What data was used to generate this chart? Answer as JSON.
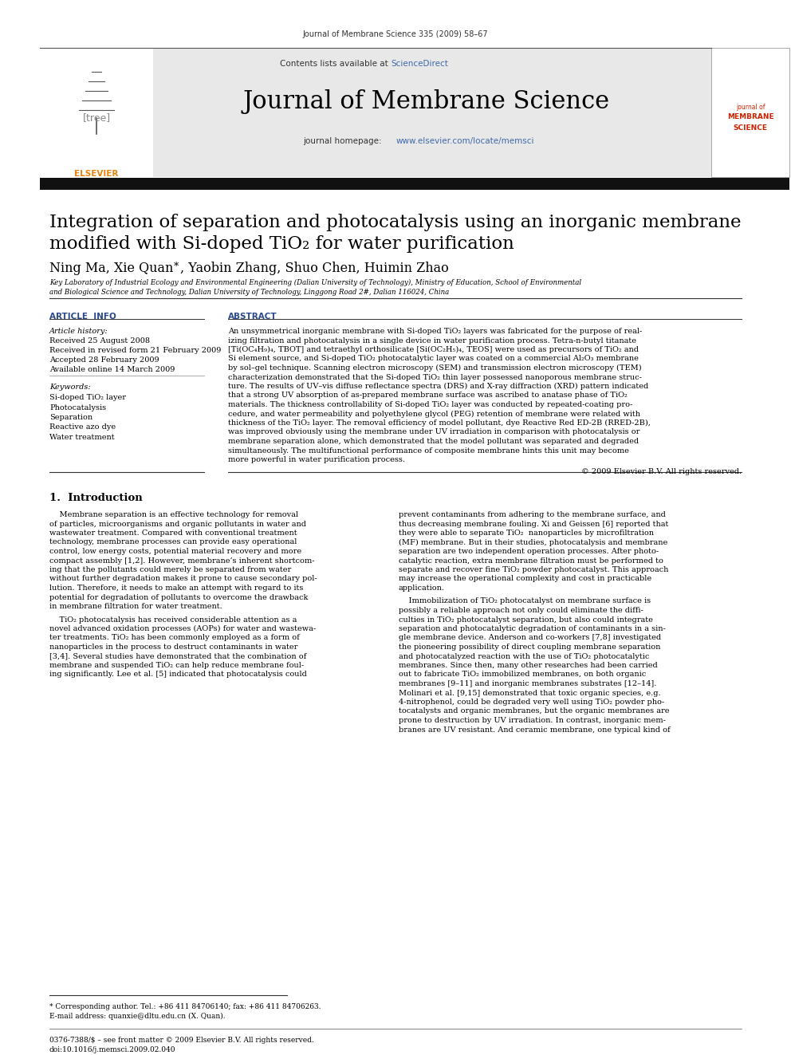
{
  "journal_ref": "Journal of Membrane Science 335 (2009) 58–67",
  "sciencedirect_color": "#4169AA",
  "journal_title": "Journal of Membrane Science",
  "homepage_link_color": "#4169AA",
  "header_bg": "#E8E8E8",
  "paper_title_line1": "Integration of separation and photocatalysis using an inorganic membrane",
  "paper_title_line2": "modified with Si-doped TiO₂ for water purification",
  "affiliation_line1": "Key Laboratory of Industrial Ecology and Environmental Engineering (Dalian University of Technology), Ministry of Education, School of Environmental",
  "affiliation_line2": "and Biological Science and Technology, Dalian University of Technology, Linggong Road 2#, Dalian 116024, China",
  "article_info_header": "ARTICLE  INFO",
  "abstract_header": "ABSTRACT",
  "article_history_label": "Article history:",
  "received": "Received 25 August 2008",
  "received_revised": "Received in revised form 21 February 2009",
  "accepted": "Accepted 28 February 2009",
  "available_online": "Available online 14 March 2009",
  "keywords_label": "Keywords:",
  "keywords": [
    "Si-doped TiO₂ layer",
    "Photocatalysis",
    "Separation",
    "Reactive azo dye",
    "Water treatment"
  ],
  "copyright": "© 2009 Elsevier B.V. All rights reserved.",
  "intro_heading": "1.  Introduction",
  "footnote_star": "* Corresponding author. Tel.: +86 411 84706140; fax: +86 411 84706263.",
  "footnote_email": "E-mail address: quanxie@dltu.edu.cn (X. Quan).",
  "footnote_issn": "0376-7388/$ – see front matter © 2009 Elsevier B.V. All rights reserved.",
  "footnote_doi": "doi:10.1016/j.memsci.2009.02.040",
  "bg_color": "#FFFFFF",
  "text_color": "#000000",
  "section_header_color": "#2B4A8C",
  "abstract_lines": [
    "An unsymmetrical inorganic membrane with Si-doped TiO₂ layers was fabricated for the purpose of real-",
    "izing filtration and photocatalysis in a single device in water purification process. Tetra-n-butyl titanate",
    "[Ti(OC₄H₉)₄, TBOT] and tetraethyl orthosilicate [Si(OC₂H₅)₄, TEOS] were used as precursors of TiO₂ and",
    "Si element source, and Si-doped TiO₂ photocatalytic layer was coated on a commercial Al₂O₃ membrane",
    "by sol–gel technique. Scanning electron microscopy (SEM) and transmission electron microscopy (TEM)",
    "characterization demonstrated that the Si-doped TiO₂ thin layer possessed nanoporous membrane struc-",
    "ture. The results of UV–vis diffuse reflectance spectra (DRS) and X-ray diffraction (XRD) pattern indicated",
    "that a strong UV absorption of as-prepared membrane surface was ascribed to anatase phase of TiO₂",
    "materials. The thickness controllability of Si-doped TiO₂ layer was conducted by repeated-coating pro-",
    "cedure, and water permeability and polyethylene glycol (PEG) retention of membrane were related with",
    "thickness of the TiO₂ layer. The removal efficiency of model pollutant, dye Reactive Red ED-2B (RRED-2B),",
    "was improved obviously using the membrane under UV irradiation in comparison with photocatalysis or",
    "membrane separation alone, which demonstrated that the model pollutant was separated and degraded",
    "simultaneously. The multifunctional performance of composite membrane hints this unit may become",
    "more powerful in water purification process."
  ],
  "intro1_lines": [
    "    Membrane separation is an effective technology for removal",
    "of particles, microorganisms and organic pollutants in water and",
    "wastewater treatment. Compared with conventional treatment",
    "technology, membrane processes can provide easy operational",
    "control, low energy costs, potential material recovery and more",
    "compact assembly [1,2]. However, membrane’s inherent shortcom-",
    "ing that the pollutants could merely be separated from water",
    "without further degradation makes it prone to cause secondary pol-",
    "lution. Therefore, it needs to make an attempt with regard to its",
    "potential for degradation of pollutants to overcome the drawback",
    "in membrane filtration for water treatment."
  ],
  "intro1_p2": [
    "    TiO₂ photocatalysis has received considerable attention as a",
    "novel advanced oxidation processes (AOPs) for water and wastewa-",
    "ter treatments. TiO₂ has been commonly employed as a form of",
    "nanoparticles in the process to destruct contaminants in water",
    "[3,4]. Several studies have demonstrated that the combination of",
    "membrane and suspended TiO₂ can help reduce membrane foul-",
    "ing significantly. Lee et al. [5] indicated that photocatalysis could"
  ],
  "intro2_lines": [
    "prevent contaminants from adhering to the membrane surface, and",
    "thus decreasing membrane fouling. Xi and Geissen [6] reported that",
    "they were able to separate TiO₂  nanoparticles by microfiltration",
    "(MF) membrane. But in their studies, photocatalysis and membrane",
    "separation are two independent operation processes. After photo-",
    "catalytic reaction, extra membrane filtration must be performed to",
    "separate and recover fine TiO₂ powder photocatalyst. This approach",
    "may increase the operational complexity and cost in practicable",
    "application."
  ],
  "intro2_p2": [
    "    Immobilization of TiO₂ photocatalyst on membrane surface is",
    "possibly a reliable approach not only could eliminate the diffi-",
    "culties in TiO₂ photocatalyst separation, but also could integrate",
    "separation and photocatalytic degradation of contaminants in a sin-",
    "gle membrane device. Anderson and co-workers [7,8] investigated",
    "the pioneering possibility of direct coupling membrane separation",
    "and photocatalyzed reaction with the use of TiO₂ photocatalytic",
    "membranes. Since then, many other researches had been carried",
    "out to fabricate TiO₂ immobilized membranes, on both organic",
    "membranes [9–11] and inorganic membranes substrates [12–14].",
    "Molinari et al. [9,15] demonstrated that toxic organic species, e.g.",
    "4-nitrophenol, could be degraded very well using TiO₂ powder pho-",
    "tocatalysts and organic membranes, but the organic membranes are",
    "prone to destruction by UV irradiation. In contrast, inorganic mem-",
    "branes are UV resistant. And ceramic membrane, one typical kind of"
  ]
}
